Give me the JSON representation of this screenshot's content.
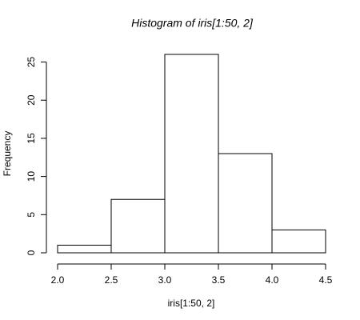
{
  "chart_data": {
    "type": "histogram",
    "title": "Histogram of iris[1:50, 2]",
    "x_label": "iris[1:50, 2]",
    "y_label": "Frequency",
    "bins": [
      2.0,
      2.5,
      3.0,
      3.5,
      4.0,
      4.5
    ],
    "values": [
      1,
      7,
      26,
      13,
      3
    ],
    "color": "#ffffff",
    "xlim": [
      2.0,
      4.5
    ],
    "xticks": [
      {
        "value": 2.0,
        "label": "2.0"
      },
      2.5,
      {
        "value": 3.0,
        "label": "3.0"
      },
      3.5,
      {
        "value": 4.0,
        "label": "4.0"
      },
      4.5
    ],
    "ylim": [
      0,
      26
    ],
    "yticks": [
      0,
      5,
      10,
      15,
      20,
      25
    ]
  }
}
